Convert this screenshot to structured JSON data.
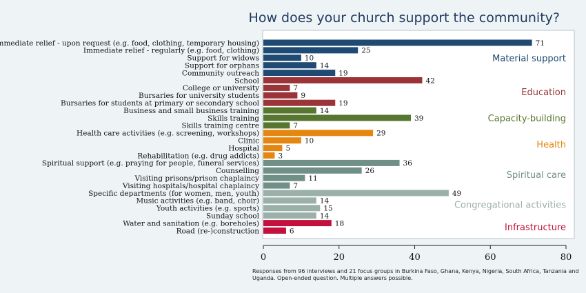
{
  "chart_data": {
    "type": "bar",
    "orientation": "horizontal",
    "title": "How does your church support the community?",
    "xlim": [
      0,
      80
    ],
    "xticks": [
      0,
      20,
      40,
      60,
      80
    ],
    "grid": false,
    "categories": [
      "Immediate relief - upon request (e.g. food, clothing, temporary housing)",
      "Immediate relief - regularly (e.g. food, clothing)",
      "Support for widows",
      "Support for orphans",
      "Community outreach",
      "School",
      "College or university",
      "Bursaries for university students",
      "Bursaries for students at primary or secondary school",
      "Business and small business training",
      "Skills training",
      "Skills training centre",
      "Health care activities (e.g. screening, workshops)",
      "Clinic",
      "Hospital",
      "Rehabilitation (e.g. drug addicts)",
      "Spiritual support (e.g. praying for people, funeral services)",
      "Counselling",
      "Visiting prisons/prison chaplaincy",
      "Visiting hospitals/hospital chaplaincy",
      "Specific departments (for women, men, youth)",
      "Music activities (e.g. band, choir)",
      "Youth activities (e.g. sports)",
      "Sunday school",
      "Water and sanitation (e.g. boreholes)",
      "Road (re-)construction"
    ],
    "values": [
      71,
      25,
      10,
      14,
      19,
      42,
      7,
      9,
      19,
      14,
      39,
      7,
      29,
      10,
      5,
      3,
      36,
      26,
      11,
      7,
      49,
      14,
      15,
      14,
      18,
      6
    ],
    "groups": [
      {
        "name": "Material support",
        "color": "#1f4a73",
        "start": 0,
        "count": 5
      },
      {
        "name": "Education",
        "color": "#9b3438",
        "start": 5,
        "count": 4
      },
      {
        "name": "Capacity-building",
        "color": "#57762f",
        "start": 9,
        "count": 3
      },
      {
        "name": "Health",
        "color": "#e4860f",
        "start": 12,
        "count": 4
      },
      {
        "name": "Spiritual care",
        "color": "#6f8f87",
        "start": 16,
        "count": 4
      },
      {
        "name": "Congregational activities",
        "color": "#9cb0aa",
        "start": 20,
        "count": 4
      },
      {
        "name": "Infrastructure",
        "color": "#c3103c",
        "start": 24,
        "count": 2
      }
    ],
    "note_lines": [
      "Responses from 96 interviews and 21 focus groups in Burkina Faso, Ghana, Kenya, Nigeria, South Africa, Tanzania and",
      "Uganda. Open-ended question. Multiple answers possible."
    ]
  }
}
